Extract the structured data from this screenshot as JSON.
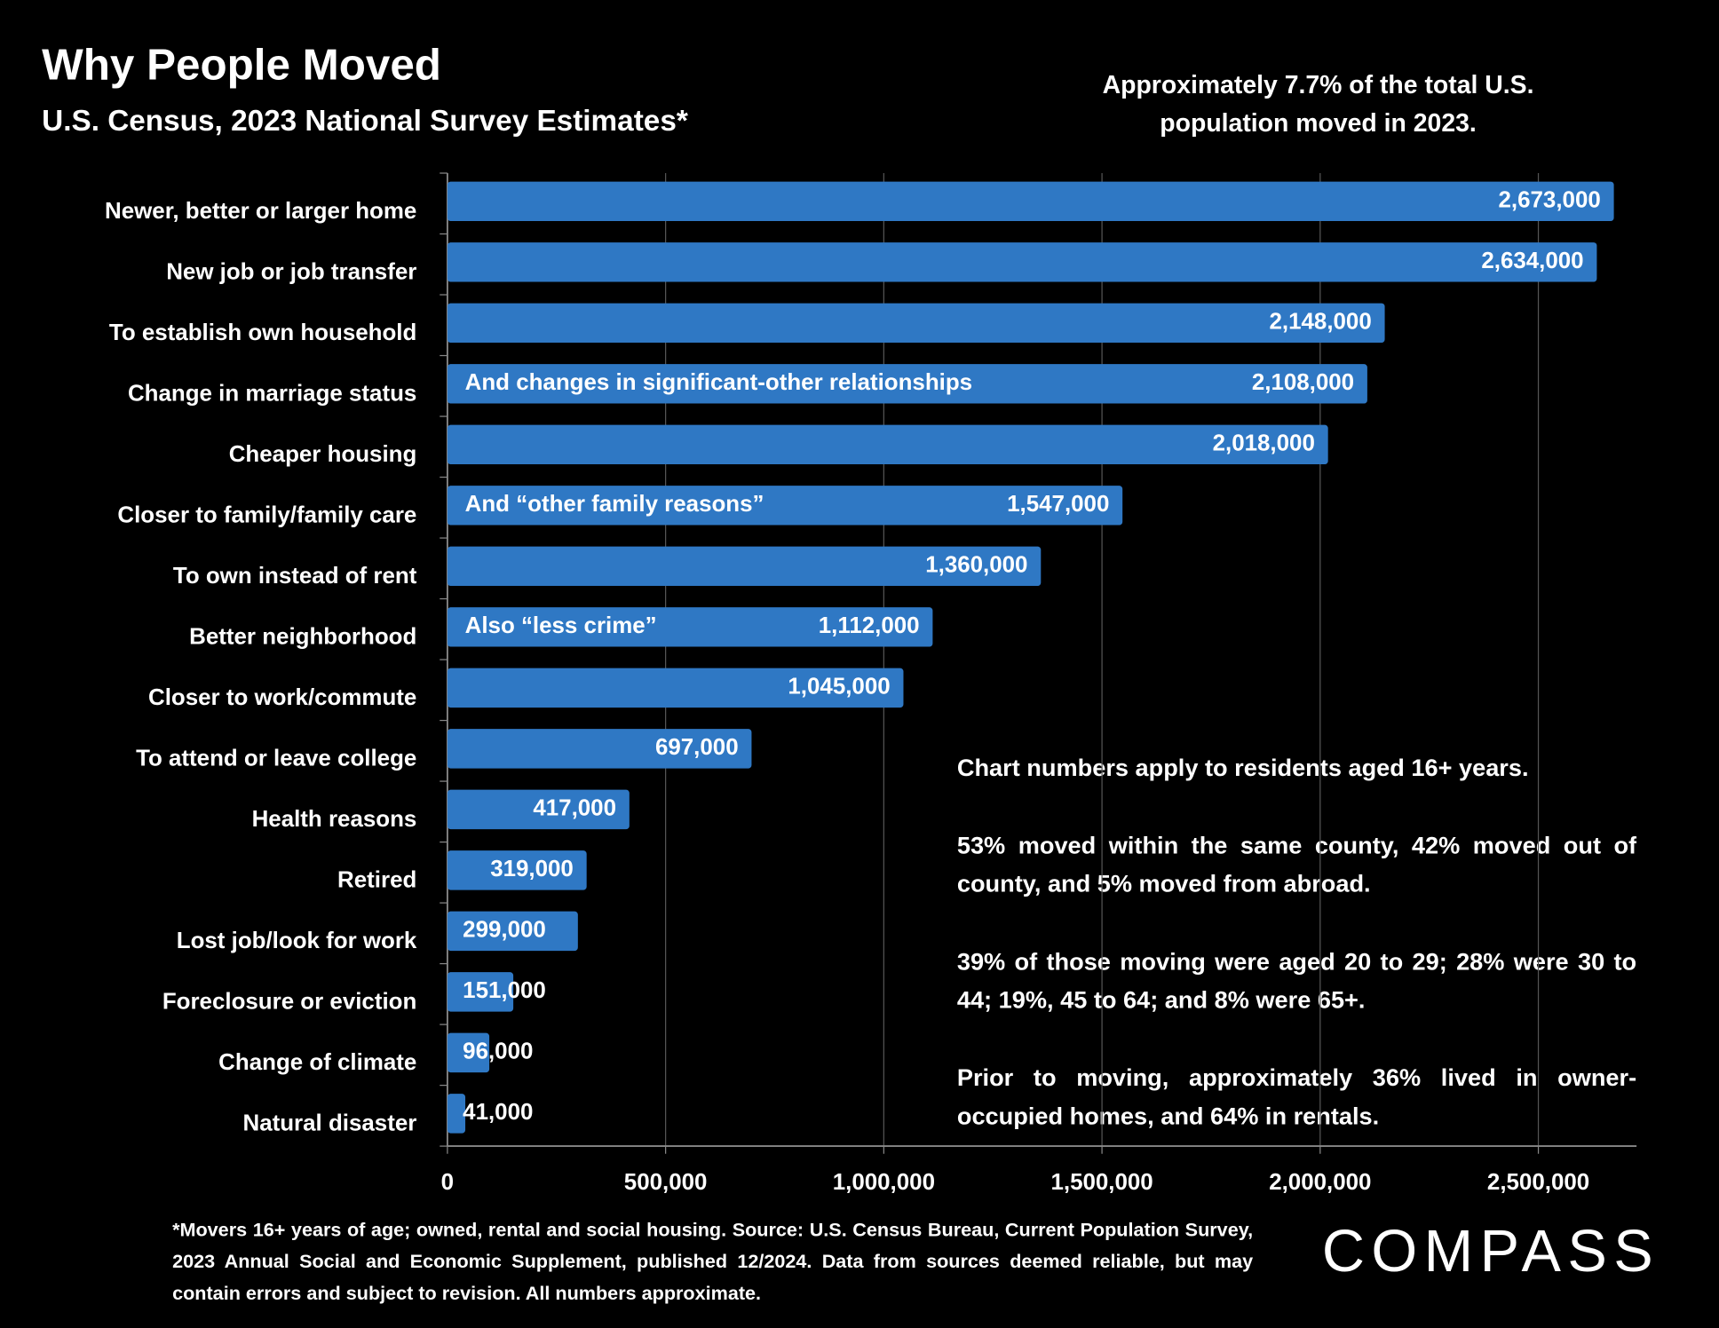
{
  "chart_data": {
    "type": "bar",
    "orientation": "horizontal",
    "title": "Why People Moved",
    "subtitle": "U.S. Census, 2023 National Survey Estimates*",
    "headline_note": "Approximately 7.7% of the total U.S. population moved in 2023.",
    "categories": [
      "Newer, better or larger home",
      "New job or job transfer",
      "To establish own household",
      "Change in marriage status",
      "Cheaper housing",
      "Closer to family/family care",
      "To own instead of rent",
      "Better neighborhood",
      "Closer to work/commute",
      "To attend or leave college",
      "Health reasons",
      "Retired",
      "Lost job/look for work",
      "Foreclosure or eviction",
      "Change of climate",
      "Natural disaster"
    ],
    "values": [
      2673000,
      2634000,
      2148000,
      2108000,
      2018000,
      1547000,
      1360000,
      1112000,
      1045000,
      697000,
      417000,
      319000,
      299000,
      151000,
      96000,
      41000
    ],
    "value_labels": [
      "2,673,000",
      "2,634,000",
      "2,148,000",
      "2,108,000",
      "2,018,000",
      "1,547,000",
      "1,360,000",
      "1,112,000",
      "1,045,000",
      "697,000",
      "417,000",
      "319,000",
      "299,000",
      "151,000",
      "96,000",
      "41,000"
    ],
    "bar_notes": [
      null,
      null,
      null,
      "And changes in significant-other relationships",
      null,
      "And “other family reasons”",
      null,
      "Also “less crime”",
      null,
      null,
      null,
      null,
      null,
      null,
      null,
      null
    ],
    "color": "#2f78c4",
    "xlim": [
      0,
      2725000
    ],
    "xticks": [
      0,
      {
        "value": 500000,
        "label": "500,000"
      },
      {
        "value": 1000000,
        "label": "1,000,000"
      },
      {
        "value": 1500000,
        "label": "1,500,000"
      },
      {
        "value": 2000000,
        "label": "2,000,000"
      },
      {
        "value": 2500000,
        "label": "2,500,000"
      }
    ],
    "grid": true,
    "notes": [
      "Chart numbers apply to residents aged 16+ years.",
      "53% moved within the same county, 42% moved out of county, and 5% moved from abroad.",
      "39% of those moving were aged 20 to 29; 28% were 30 to 44; 19%, 45 to 64; and 8% were 65+.",
      "Prior to moving, approximately 36% lived in owner-occupied homes, and 64% in rentals."
    ],
    "footnote": "*Movers 16+ years of age; owned, rental and social housing. Source: U.S. Census Bureau, Current Population Survey, 2023 Annual Social and Economic Supplement, published 12/2024. Data from sources deemed reliable, but may contain errors and subject to revision. All numbers approximate.",
    "logo": "COMPASS"
  }
}
